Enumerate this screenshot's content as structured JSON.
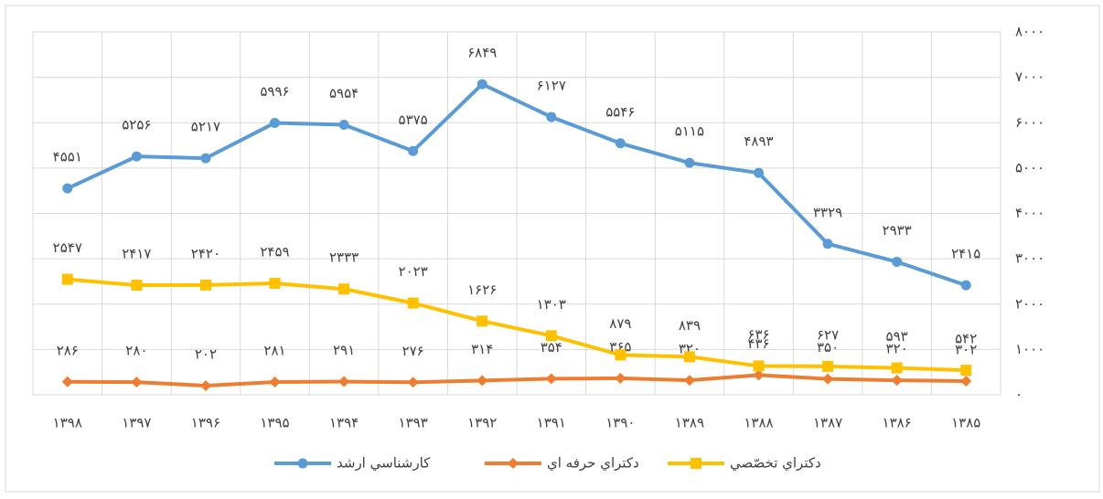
{
  "chart_data": {
    "type": "line",
    "categories": [
      "۱۳۹۸",
      "۱۳۹۷",
      "۱۳۹۶",
      "۱۳۹۵",
      "۱۳۹۴",
      "۱۳۹۳",
      "۱۳۹۲",
      "۱۳۹۱",
      "۱۳۹۰",
      "۱۳۸۹",
      "۱۳۸۸",
      "۱۳۸۷",
      "۱۳۸۶",
      "۱۳۸۵"
    ],
    "series": [
      {
        "name": "كارشناسي ارشد",
        "color": "#5b9bd5",
        "marker": "circle",
        "values": [
          4551,
          5256,
          5217,
          5996,
          5954,
          5375,
          6849,
          6127,
          5546,
          5115,
          4893,
          3329,
          2933,
          2415
        ],
        "value_labels": [
          "۴۵۵۱",
          "۵۲۵۶",
          "۵۲۱۷",
          "۵۹۹۶",
          "۵۹۵۴",
          "۵۳۷۵",
          "۶۸۴۹",
          "۶۱۲۷",
          "۵۵۴۶",
          "۵۱۱۵",
          "۴۸۹۳",
          "۳۳۲۹",
          "۲۹۳۳",
          "۲۴۱۵"
        ]
      },
      {
        "name": "دكتراي حرفه اي",
        "color": "#ed7d31",
        "marker": "diamond",
        "values": [
          286,
          280,
          202,
          281,
          291,
          276,
          314,
          354,
          365,
          320,
          436,
          350,
          320,
          302
        ],
        "value_labels": [
          "۲۸۶",
          "۲۸۰",
          "۲۰۲",
          "۲۸۱",
          "۲۹۱",
          "۲۷۶",
          "۳۱۴",
          "۳۵۴",
          "۳۶۵",
          "۳۲۰",
          "۴۳۶",
          "۳۵۰",
          "۳۲۰",
          "۳۰۲"
        ]
      },
      {
        "name": "دكتراي تخصّصي",
        "color": "#ffc000",
        "marker": "square",
        "values": [
          2547,
          2417,
          2420,
          2459,
          2333,
          2023,
          1626,
          1303,
          879,
          839,
          636,
          627,
          593,
          542
        ],
        "value_labels": [
          "۲۵۴۷",
          "۲۴۱۷",
          "۲۴۲۰",
          "۲۴۵۹",
          "۲۳۳۳",
          "۲۰۲۳",
          "۱۶۲۶",
          "۱۳۰۳",
          "۸۷۹",
          "۸۳۹",
          "۶۳۶",
          "۶۲۷",
          "۵۹۳",
          "۵۴۲"
        ]
      }
    ],
    "ylim": [
      0,
      8000
    ],
    "yticks": [
      {
        "value": 0,
        "label": "۰"
      },
      {
        "value": 1000,
        "label": "۱۰۰۰"
      },
      {
        "value": 2000,
        "label": "۲۰۰۰"
      },
      {
        "value": 3000,
        "label": "۳۰۰۰"
      },
      {
        "value": 4000,
        "label": "۴۰۰۰"
      },
      {
        "value": 5000,
        "label": "۵۰۰۰"
      },
      {
        "value": 6000,
        "label": "۶۰۰۰"
      },
      {
        "value": 7000,
        "label": "۷۰۰۰"
      },
      {
        "value": 8000,
        "label": "۸۰۰۰"
      }
    ],
    "grid": true,
    "legend": "bottom"
  }
}
